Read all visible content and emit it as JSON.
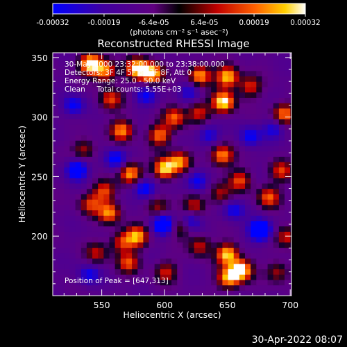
{
  "chart_data": {
    "type": "heatmap",
    "title": "Reconstructed RHESSI Image",
    "xlabel": "Heliocentric X (arcsec)",
    "ylabel": "Heliocentric Y (arcsec)",
    "xlim": [
      511,
      701
    ],
    "ylim": [
      150,
      354
    ],
    "xticks": [
      550,
      600,
      650,
      700
    ],
    "yticks": [
      200,
      250,
      300,
      350
    ],
    "colorbar": {
      "vmin": -0.00032,
      "vmax": 0.00032,
      "ticks": [
        -0.00032,
        -0.00019,
        -6.4e-05,
        6.4e-05,
        0.00019,
        0.00032
      ],
      "tick_labels": [
        "-0.00032",
        "-0.00019",
        "-6.4e-05",
        "6.4e-05",
        "0.00019",
        "0.00032"
      ],
      "label": "(photons cm⁻² s⁻¹ asec⁻²)"
    },
    "colors": {
      "background": "#000000",
      "low": "#0000ff",
      "mid": "#ff0000",
      "high": "#ffffff"
    },
    "annotations": {
      "time": "30-May-2000 23:32:00.000 to 23:38:00.000",
      "detectors": "Detectors: 3F 4F 5F 6F 7F 8F, Att 0",
      "energy": "Energy Range: 25.0 - 50.0 keV",
      "method": "Clean     Total counts: 5.55E+03",
      "peak": "Position of Peak = [647,313]"
    },
    "peak": [
      647,
      313
    ],
    "blobs": [
      {
        "x": 541,
        "y": 345,
        "v": 1.0
      },
      {
        "x": 553,
        "y": 339,
        "v": 0.75
      },
      {
        "x": 578,
        "y": 341,
        "v": 0.9
      },
      {
        "x": 590,
        "y": 337,
        "v": 0.95
      },
      {
        "x": 628,
        "y": 335,
        "v": 0.85
      },
      {
        "x": 650,
        "y": 334,
        "v": 0.9
      },
      {
        "x": 668,
        "y": 326,
        "v": 0.55
      },
      {
        "x": 647,
        "y": 313,
        "v": 1.0
      },
      {
        "x": 557,
        "y": 315,
        "v": 0.6
      },
      {
        "x": 566,
        "y": 289,
        "v": 0.75
      },
      {
        "x": 608,
        "y": 300,
        "v": 0.65
      },
      {
        "x": 596,
        "y": 285,
        "v": 0.7
      },
      {
        "x": 627,
        "y": 304,
        "v": 0.55
      },
      {
        "x": 695,
        "y": 303,
        "v": 0.75
      },
      {
        "x": 573,
        "y": 253,
        "v": 0.85
      },
      {
        "x": 552,
        "y": 238,
        "v": 0.6
      },
      {
        "x": 600,
        "y": 257,
        "v": 0.9
      },
      {
        "x": 612,
        "y": 263,
        "v": 0.75
      },
      {
        "x": 646,
        "y": 268,
        "v": 0.8
      },
      {
        "x": 660,
        "y": 247,
        "v": 0.6
      },
      {
        "x": 693,
        "y": 255,
        "v": 0.55
      },
      {
        "x": 536,
        "y": 273,
        "v": 0.45
      },
      {
        "x": 644,
        "y": 236,
        "v": 0.45
      },
      {
        "x": 624,
        "y": 226,
        "v": 0.5
      },
      {
        "x": 683,
        "y": 233,
        "v": 0.65
      },
      {
        "x": 541,
        "y": 227,
        "v": 0.55
      },
      {
        "x": 556,
        "y": 220,
        "v": 0.75
      },
      {
        "x": 595,
        "y": 224,
        "v": 0.45
      },
      {
        "x": 578,
        "y": 200,
        "v": 0.8
      },
      {
        "x": 566,
        "y": 195,
        "v": 0.55
      },
      {
        "x": 613,
        "y": 208,
        "v": 0.5
      },
      {
        "x": 628,
        "y": 192,
        "v": 0.5
      },
      {
        "x": 650,
        "y": 185,
        "v": 0.9
      },
      {
        "x": 661,
        "y": 172,
        "v": 1.0
      },
      {
        "x": 651,
        "y": 165,
        "v": 0.85
      },
      {
        "x": 571,
        "y": 178,
        "v": 0.6
      },
      {
        "x": 601,
        "y": 170,
        "v": 0.5
      },
      {
        "x": 546,
        "y": 186,
        "v": 0.45
      },
      {
        "x": 697,
        "y": 200,
        "v": 0.55
      },
      {
        "x": 690,
        "y": 170,
        "v": 0.45
      }
    ],
    "negatives": [
      {
        "x": 530,
        "y": 256,
        "v": -0.7
      },
      {
        "x": 561,
        "y": 265,
        "v": -0.55
      },
      {
        "x": 584,
        "y": 240,
        "v": -0.6
      },
      {
        "x": 599,
        "y": 210,
        "v": -0.8
      },
      {
        "x": 620,
        "y": 213,
        "v": -0.55
      },
      {
        "x": 626,
        "y": 247,
        "v": -0.5
      },
      {
        "x": 655,
        "y": 222,
        "v": -0.45
      },
      {
        "x": 676,
        "y": 205,
        "v": -0.95
      },
      {
        "x": 668,
        "y": 284,
        "v": -0.5
      },
      {
        "x": 635,
        "y": 285,
        "v": -0.45
      },
      {
        "x": 585,
        "y": 318,
        "v": -0.45
      },
      {
        "x": 620,
        "y": 322,
        "v": -0.4
      },
      {
        "x": 528,
        "y": 310,
        "v": -0.5
      },
      {
        "x": 540,
        "y": 168,
        "v": -0.45
      },
      {
        "x": 687,
        "y": 290,
        "v": -0.4
      }
    ]
  },
  "footer": {
    "timestamp": "30-Apr-2022 08:07"
  }
}
